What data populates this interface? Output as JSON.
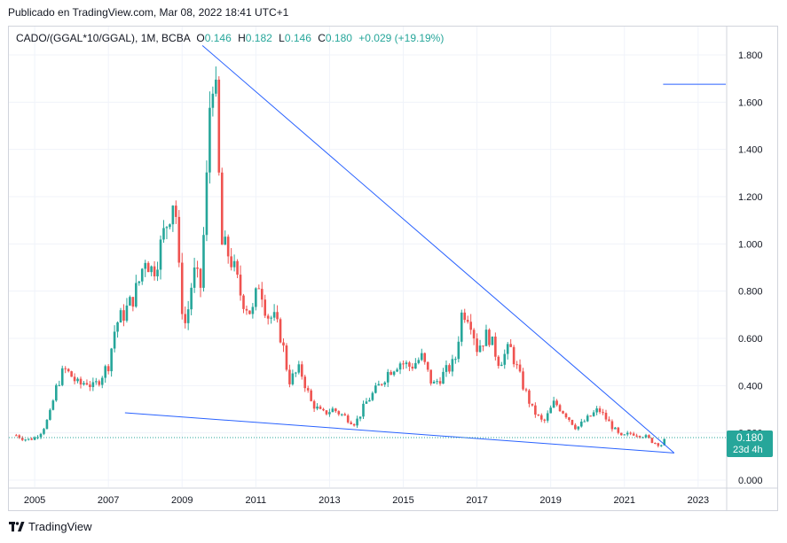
{
  "header": {
    "published": "Publicado en TradingView.com, Mar 08, 2022 18:41 UTC+1"
  },
  "legend": {
    "symbol": "CADO/(GGAL*10/GGAL), 1M, BCBA",
    "o_label": "O",
    "o_value": "0.146",
    "h_label": "H",
    "h_value": "0.182",
    "l_label": "L",
    "l_value": "0.146",
    "c_label": "C",
    "c_value": "0.180",
    "change": "+0.029 (+19.19%)"
  },
  "price_tag": {
    "price": "0.180",
    "countdown": "23d 4h",
    "color": "#26a69a"
  },
  "footer": {
    "brand": "TradingView"
  },
  "colors": {
    "up": "#26a69a",
    "down": "#ef5350",
    "trendline": "#2962ff",
    "grid": "#f0f3fa"
  },
  "chart_data": {
    "type": "candlestick",
    "interval": "1M",
    "x_ticks": [
      "2005",
      "2007",
      "2009",
      "2011",
      "2013",
      "2015",
      "2017",
      "2019",
      "2021",
      "2023"
    ],
    "y_ticks": [
      "0.000",
      "0.200",
      "0.400",
      "0.600",
      "0.800",
      "1.000",
      "1.200",
      "1.400",
      "1.600",
      "1.800"
    ],
    "ylim": [
      -0.03,
      1.92
    ],
    "xlim": [
      2004.3,
      2023.75
    ],
    "last_price": 0.18,
    "close_series": [
      [
        2004.5,
        0.19
      ],
      [
        2004.8,
        0.17
      ],
      [
        2005.0,
        0.18
      ],
      [
        2005.2,
        0.21
      ],
      [
        2005.4,
        0.27
      ],
      [
        2005.6,
        0.4
      ],
      [
        2005.8,
        0.47
      ],
      [
        2006.0,
        0.44
      ],
      [
        2006.2,
        0.4
      ],
      [
        2006.4,
        0.42
      ],
      [
        2006.6,
        0.39
      ],
      [
        2006.8,
        0.44
      ],
      [
        2007.0,
        0.49
      ],
      [
        2007.2,
        0.66
      ],
      [
        2007.4,
        0.7
      ],
      [
        2007.6,
        0.75
      ],
      [
        2007.8,
        0.82
      ],
      [
        2008.0,
        0.95
      ],
      [
        2008.2,
        0.88
      ],
      [
        2008.4,
        0.98
      ],
      [
        2008.6,
        1.1
      ],
      [
        2008.8,
        1.22
      ],
      [
        2008.95,
        0.78
      ],
      [
        2009.1,
        0.65
      ],
      [
        2009.3,
        0.88
      ],
      [
        2009.5,
        0.82
      ],
      [
        2009.65,
        1.2
      ],
      [
        2009.8,
        1.78
      ],
      [
        2009.95,
        1.55
      ],
      [
        2010.05,
        1.0
      ],
      [
        2010.3,
        0.95
      ],
      [
        2010.6,
        0.78
      ],
      [
        2010.9,
        0.7
      ],
      [
        2011.1,
        0.85
      ],
      [
        2011.3,
        0.7
      ],
      [
        2011.5,
        0.68
      ],
      [
        2011.7,
        0.6
      ],
      [
        2011.9,
        0.42
      ],
      [
        2012.2,
        0.47
      ],
      [
        2012.5,
        0.33
      ],
      [
        2012.8,
        0.28
      ],
      [
        2013.1,
        0.3
      ],
      [
        2013.4,
        0.27
      ],
      [
        2013.7,
        0.24
      ],
      [
        2014.0,
        0.33
      ],
      [
        2014.3,
        0.39
      ],
      [
        2014.6,
        0.46
      ],
      [
        2014.9,
        0.5
      ],
      [
        2015.2,
        0.48
      ],
      [
        2015.5,
        0.52
      ],
      [
        2015.8,
        0.4
      ],
      [
        2016.1,
        0.45
      ],
      [
        2016.4,
        0.5
      ],
      [
        2016.6,
        0.72
      ],
      [
        2016.8,
        0.7
      ],
      [
        2017.0,
        0.56
      ],
      [
        2017.3,
        0.62
      ],
      [
        2017.6,
        0.5
      ],
      [
        2017.9,
        0.56
      ],
      [
        2018.2,
        0.42
      ],
      [
        2018.5,
        0.3
      ],
      [
        2018.8,
        0.24
      ],
      [
        2019.1,
        0.33
      ],
      [
        2019.4,
        0.28
      ],
      [
        2019.7,
        0.22
      ],
      [
        2020.0,
        0.26
      ],
      [
        2020.3,
        0.3
      ],
      [
        2020.6,
        0.24
      ],
      [
        2020.9,
        0.18
      ],
      [
        2021.2,
        0.2
      ],
      [
        2021.5,
        0.19
      ],
      [
        2021.8,
        0.16
      ],
      [
        2022.0,
        0.15
      ],
      [
        2022.15,
        0.18
      ]
    ],
    "drawings": [
      {
        "name": "upper-trendline",
        "from": [
          2009.55,
          1.84
        ],
        "to": [
          2022.35,
          0.115
        ]
      },
      {
        "name": "lower-trendline",
        "from": [
          2007.45,
          0.285
        ],
        "to": [
          2022.35,
          0.115
        ]
      },
      {
        "name": "horizontal-ray",
        "from": [
          2022.05,
          1.676
        ],
        "to": [
          2023.75,
          1.676
        ]
      }
    ]
  }
}
